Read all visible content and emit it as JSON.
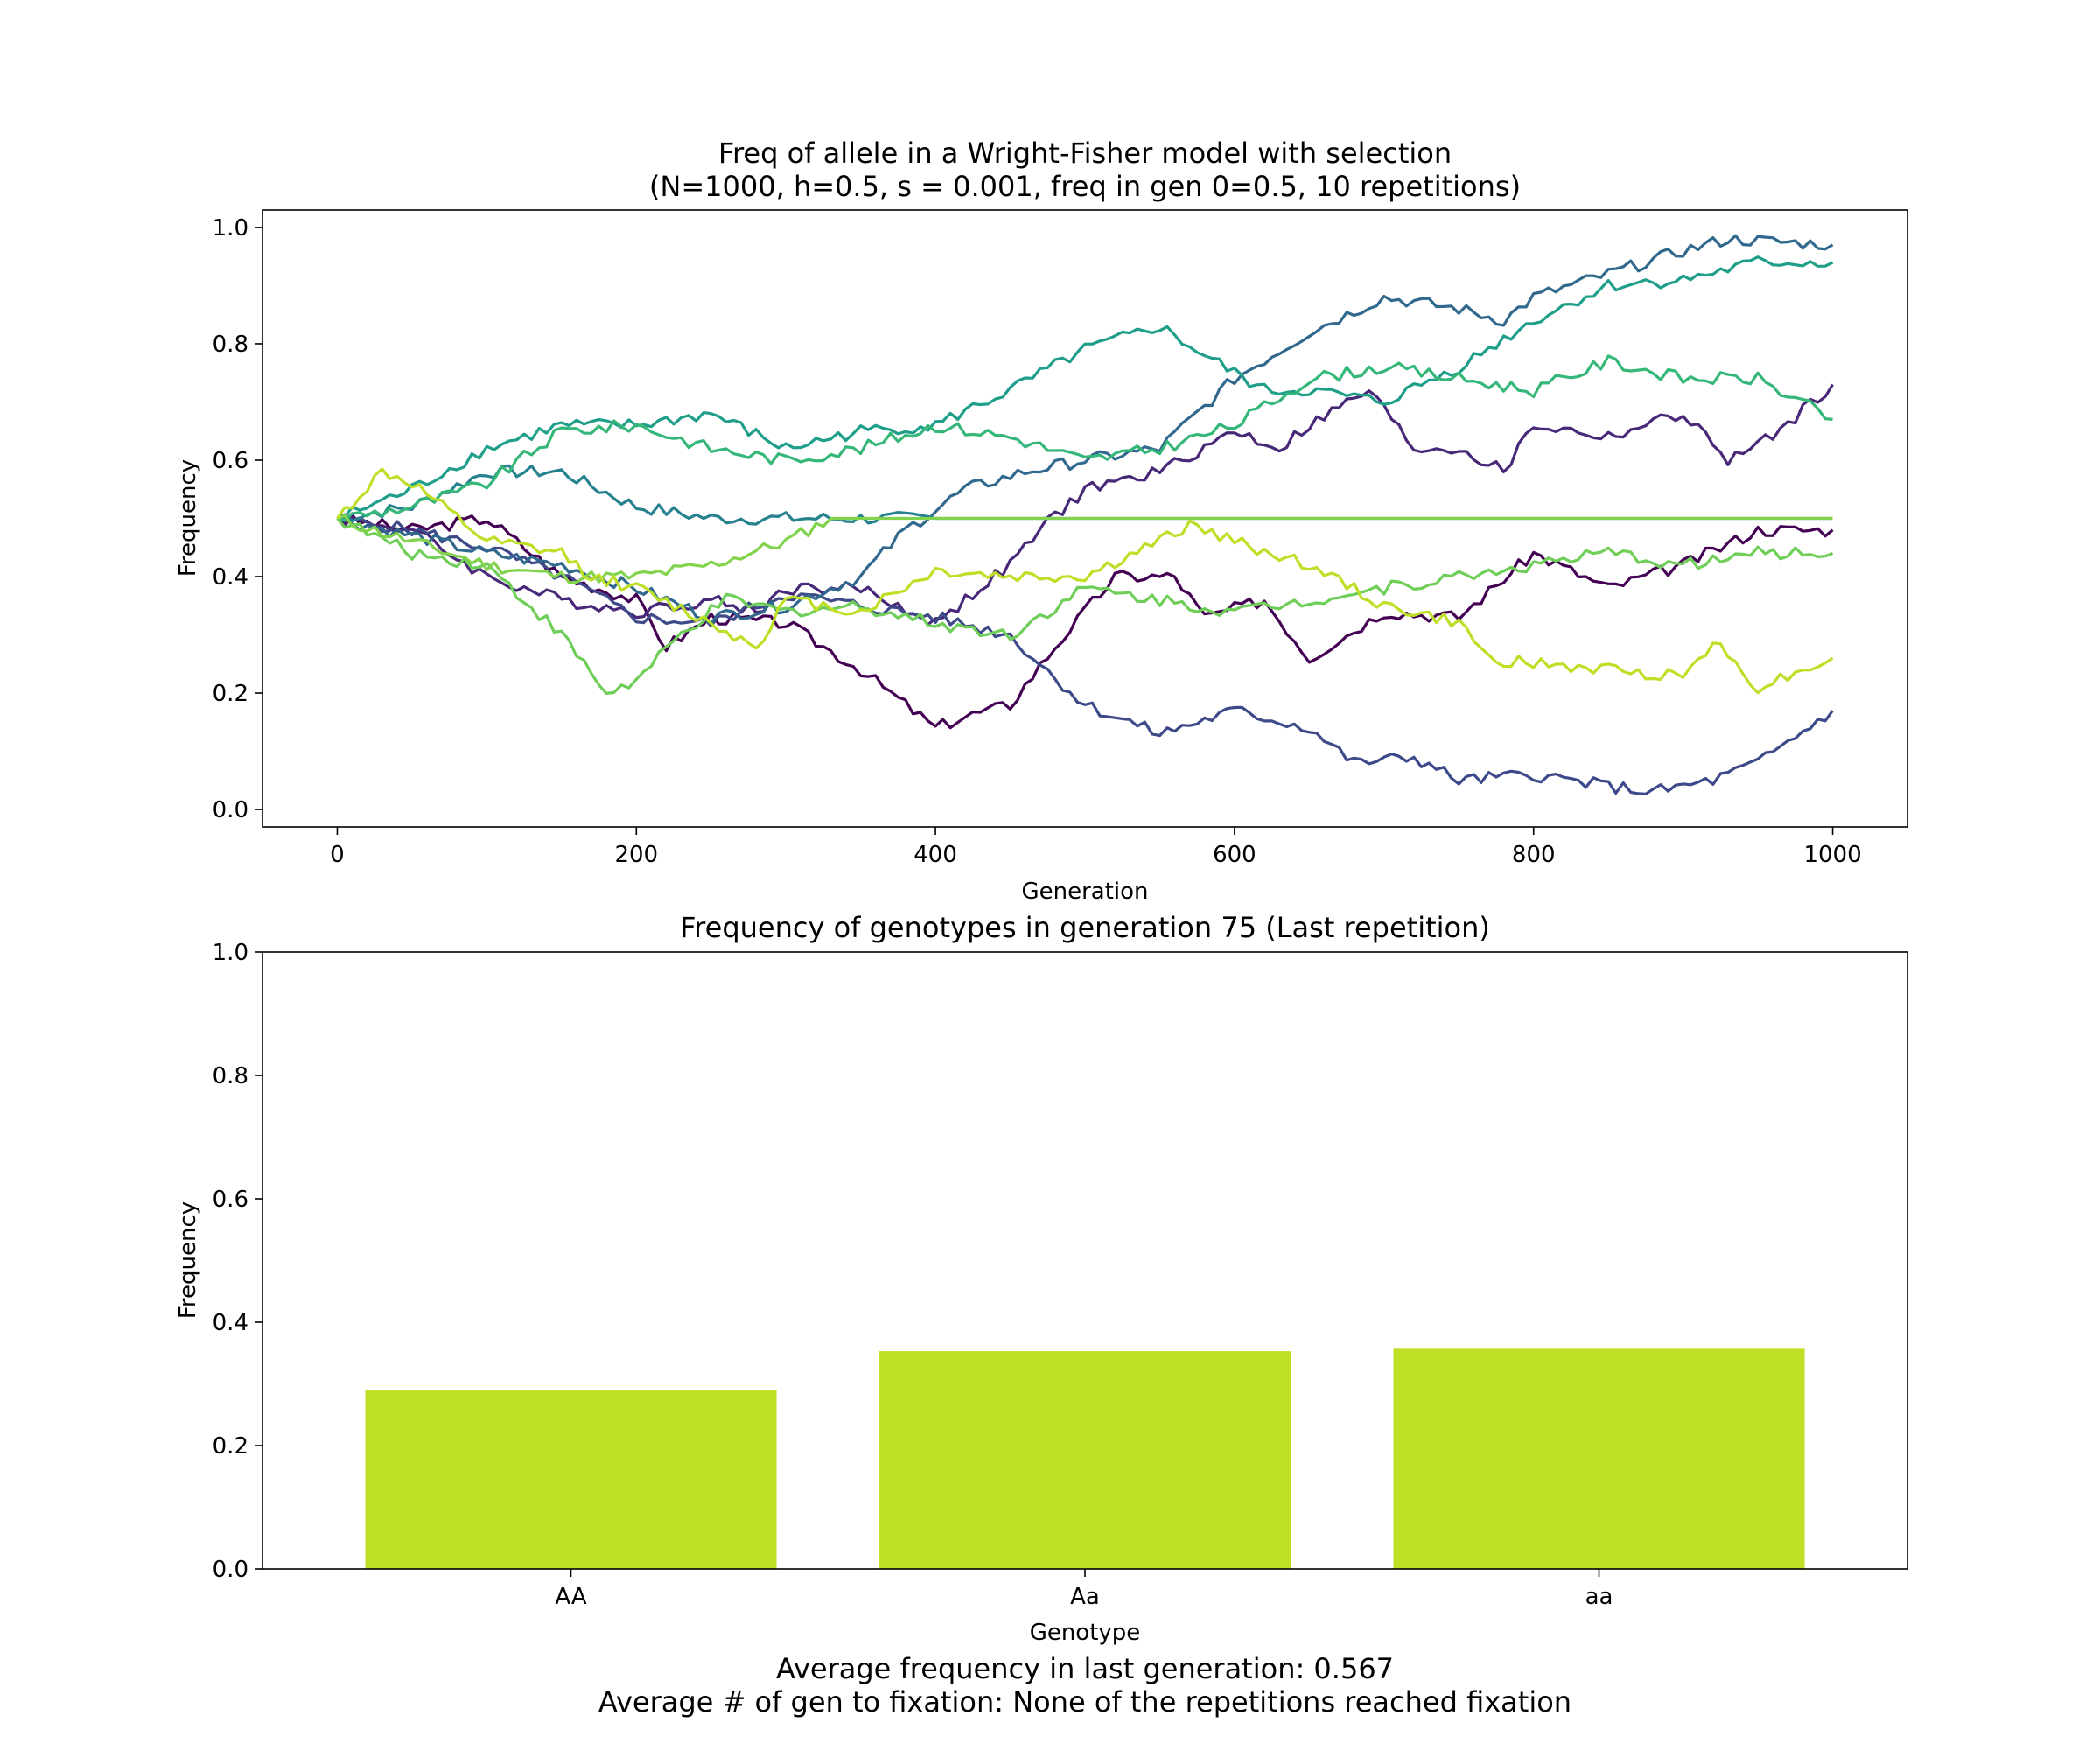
{
  "figure": {
    "footer_lines": [
      "Average frequency in last generation: 0.567",
      "Average # of gen to fixation: None of the repetitions reached fixation"
    ]
  },
  "chart_data": [
    {
      "type": "line",
      "title_lines": [
        "Freq of allele in a Wright-Fisher model with selection",
        "(N=1000, h=0.5, s = 0.001, freq in gen 0=0.5, 10 repetitions)"
      ],
      "xlabel": "Generation",
      "ylabel": "Frequency",
      "xlim": [
        -50,
        1050
      ],
      "ylim": [
        -0.03,
        1.03
      ],
      "xticks": [
        0,
        200,
        400,
        600,
        800,
        1000
      ],
      "yticks": [
        0.0,
        0.2,
        0.4,
        0.6,
        0.8,
        1.0
      ],
      "grid": false,
      "legend": "none",
      "series": [
        {
          "color": "#440154",
          "points": [
            [
              0,
              0.5
            ],
            [
              50,
              0.48
            ],
            [
              100,
              0.5
            ],
            [
              150,
              0.4
            ],
            [
              200,
              0.36
            ],
            [
              220,
              0.28
            ],
            [
              250,
              0.33
            ],
            [
              300,
              0.32
            ],
            [
              350,
              0.24
            ],
            [
              400,
              0.14
            ],
            [
              420,
              0.16
            ],
            [
              450,
              0.18
            ],
            [
              480,
              0.28
            ],
            [
              520,
              0.4
            ],
            [
              560,
              0.4
            ],
            [
              580,
              0.33
            ],
            [
              620,
              0.36
            ],
            [
              650,
              0.26
            ],
            [
              700,
              0.34
            ],
            [
              750,
              0.33
            ],
            [
              800,
              0.44
            ],
            [
              850,
              0.38
            ],
            [
              900,
              0.42
            ],
            [
              950,
              0.48
            ],
            [
              1000,
              0.48
            ]
          ]
        },
        {
          "color": "#482878",
          "points": [
            [
              0,
              0.5
            ],
            [
              50,
              0.48
            ],
            [
              100,
              0.4
            ],
            [
              150,
              0.36
            ],
            [
              200,
              0.34
            ],
            [
              250,
              0.36
            ],
            [
              280,
              0.34
            ],
            [
              300,
              0.38
            ],
            [
              350,
              0.38
            ],
            [
              400,
              0.32
            ],
            [
              450,
              0.42
            ],
            [
              470,
              0.48
            ],
            [
              500,
              0.55
            ],
            [
              550,
              0.58
            ],
            [
              600,
              0.65
            ],
            [
              630,
              0.62
            ],
            [
              650,
              0.66
            ],
            [
              690,
              0.72
            ],
            [
              720,
              0.62
            ],
            [
              750,
              0.62
            ],
            [
              780,
              0.58
            ],
            [
              800,
              0.66
            ],
            [
              850,
              0.64
            ],
            [
              900,
              0.68
            ],
            [
              930,
              0.6
            ],
            [
              960,
              0.64
            ],
            [
              1000,
              0.73
            ]
          ]
        },
        {
          "color": "#3e4989",
          "points": [
            [
              0,
              0.5
            ],
            [
              50,
              0.48
            ],
            [
              100,
              0.45
            ],
            [
              150,
              0.4
            ],
            [
              200,
              0.33
            ],
            [
              250,
              0.32
            ],
            [
              300,
              0.37
            ],
            [
              350,
              0.35
            ],
            [
              400,
              0.33
            ],
            [
              450,
              0.3
            ],
            [
              470,
              0.25
            ],
            [
              500,
              0.18
            ],
            [
              550,
              0.13
            ],
            [
              600,
              0.17
            ],
            [
              650,
              0.14
            ],
            [
              680,
              0.08
            ],
            [
              720,
              0.09
            ],
            [
              750,
              0.05
            ],
            [
              800,
              0.06
            ],
            [
              850,
              0.04
            ],
            [
              880,
              0.03
            ],
            [
              920,
              0.05
            ],
            [
              950,
              0.08
            ],
            [
              1000,
              0.17
            ]
          ]
        },
        {
          "color": "#31688e",
          "points": [
            [
              0,
              0.5
            ],
            [
              50,
              0.47
            ],
            [
              100,
              0.44
            ],
            [
              150,
              0.42
            ],
            [
              200,
              0.38
            ],
            [
              250,
              0.33
            ],
            [
              300,
              0.35
            ],
            [
              350,
              0.4
            ],
            [
              380,
              0.48
            ],
            [
              420,
              0.55
            ],
            [
              460,
              0.58
            ],
            [
              500,
              0.6
            ],
            [
              550,
              0.62
            ],
            [
              600,
              0.74
            ],
            [
              650,
              0.82
            ],
            [
              700,
              0.88
            ],
            [
              750,
              0.86
            ],
            [
              780,
              0.84
            ],
            [
              800,
              0.88
            ],
            [
              850,
              0.92
            ],
            [
              900,
              0.96
            ],
            [
              930,
              0.98
            ],
            [
              1000,
              0.97
            ]
          ]
        },
        {
          "color": "#26828e",
          "points": [
            [
              0,
              0.5
            ],
            [
              50,
              0.52
            ],
            [
              100,
              0.58
            ],
            [
              150,
              0.58
            ],
            [
              200,
              0.52
            ],
            [
              250,
              0.5
            ],
            [
              300,
              0.5
            ],
            [
              350,
              0.5
            ],
            [
              400,
              0.5
            ],
            [
              1000,
              0.5
            ]
          ]
        },
        {
          "color": "#1f9e89",
          "points": [
            [
              0,
              0.5
            ],
            [
              50,
              0.55
            ],
            [
              100,
              0.62
            ],
            [
              150,
              0.66
            ],
            [
              200,
              0.66
            ],
            [
              250,
              0.68
            ],
            [
              300,
              0.62
            ],
            [
              350,
              0.65
            ],
            [
              400,
              0.66
            ],
            [
              450,
              0.72
            ],
            [
              500,
              0.79
            ],
            [
              550,
              0.83
            ],
            [
              580,
              0.78
            ],
            [
              620,
              0.72
            ],
            [
              650,
              0.72
            ],
            [
              700,
              0.7
            ],
            [
              750,
              0.76
            ],
            [
              800,
              0.84
            ],
            [
              850,
              0.9
            ],
            [
              900,
              0.91
            ],
            [
              950,
              0.94
            ],
            [
              1000,
              0.94
            ]
          ]
        },
        {
          "color": "#35b779",
          "points": [
            [
              0,
              0.5
            ],
            [
              50,
              0.52
            ],
            [
              100,
              0.56
            ],
            [
              150,
              0.65
            ],
            [
              200,
              0.66
            ],
            [
              250,
              0.62
            ],
            [
              300,
              0.6
            ],
            [
              350,
              0.62
            ],
            [
              400,
              0.66
            ],
            [
              450,
              0.64
            ],
            [
              500,
              0.6
            ],
            [
              550,
              0.62
            ],
            [
              600,
              0.66
            ],
            [
              650,
              0.74
            ],
            [
              700,
              0.76
            ],
            [
              750,
              0.74
            ],
            [
              800,
              0.72
            ],
            [
              850,
              0.77
            ],
            [
              900,
              0.74
            ],
            [
              950,
              0.74
            ],
            [
              1000,
              0.67
            ]
          ]
        },
        {
          "color": "#6ece58",
          "points": [
            [
              0,
              0.5
            ],
            [
              50,
              0.44
            ],
            [
              100,
              0.42
            ],
            [
              150,
              0.3
            ],
            [
              180,
              0.2
            ],
            [
              200,
              0.22
            ],
            [
              230,
              0.3
            ],
            [
              260,
              0.36
            ],
            [
              300,
              0.34
            ],
            [
              350,
              0.35
            ],
            [
              400,
              0.32
            ],
            [
              450,
              0.3
            ],
            [
              500,
              0.38
            ],
            [
              550,
              0.36
            ],
            [
              600,
              0.34
            ],
            [
              650,
              0.36
            ],
            [
              700,
              0.38
            ],
            [
              750,
              0.4
            ],
            [
              800,
              0.42
            ],
            [
              850,
              0.44
            ],
            [
              900,
              0.42
            ],
            [
              950,
              0.44
            ],
            [
              1000,
              0.44
            ]
          ]
        },
        {
          "color": "#82d34c",
          "points": [
            [
              0,
              0.5
            ],
            [
              50,
              0.46
            ],
            [
              100,
              0.42
            ],
            [
              150,
              0.4
            ],
            [
              200,
              0.4
            ],
            [
              250,
              0.42
            ],
            [
              300,
              0.46
            ],
            [
              330,
              0.5
            ],
            [
              1000,
              0.5
            ]
          ]
        },
        {
          "color": "#bddf26",
          "points": [
            [
              0,
              0.5
            ],
            [
              30,
              0.58
            ],
            [
              50,
              0.56
            ],
            [
              100,
              0.46
            ],
            [
              150,
              0.44
            ],
            [
              170,
              0.4
            ],
            [
              200,
              0.38
            ],
            [
              250,
              0.32
            ],
            [
              280,
              0.28
            ],
            [
              300,
              0.36
            ],
            [
              350,
              0.34
            ],
            [
              400,
              0.41
            ],
            [
              450,
              0.4
            ],
            [
              500,
              0.4
            ],
            [
              550,
              0.46
            ],
            [
              570,
              0.49
            ],
            [
              600,
              0.46
            ],
            [
              650,
              0.42
            ],
            [
              700,
              0.35
            ],
            [
              750,
              0.32
            ],
            [
              770,
              0.26
            ],
            [
              800,
              0.25
            ],
            [
              850,
              0.24
            ],
            [
              900,
              0.23
            ],
            [
              920,
              0.29
            ],
            [
              950,
              0.21
            ],
            [
              1000,
              0.26
            ]
          ]
        }
      ]
    },
    {
      "type": "bar",
      "title": "Frequency of genotypes in generation 75 (Last repetition)",
      "xlabel": "Genotype",
      "ylabel": "Frequency",
      "ylim": [
        0.0,
        1.0
      ],
      "yticks": [
        0.0,
        0.2,
        0.4,
        0.6,
        0.8,
        1.0
      ],
      "categories": [
        "AA",
        "Aa",
        "aa"
      ],
      "values": [
        0.29,
        0.353,
        0.357
      ],
      "bar_color": "#bddf26",
      "grid": false,
      "legend": "none"
    }
  ]
}
